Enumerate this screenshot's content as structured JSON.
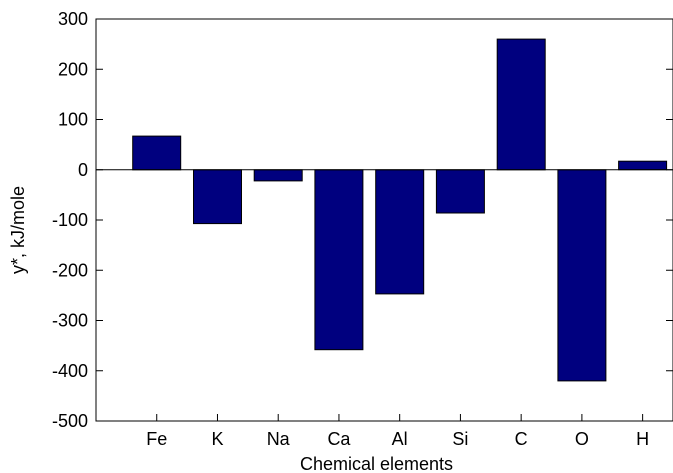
{
  "chart_data": {
    "type": "bar",
    "title": "",
    "xlabel": "Chemical elements",
    "ylabel": "y*, kJ/mole",
    "categories": [
      "Fe",
      "K",
      "Na",
      "Ca",
      "Al",
      "Si",
      "C",
      "O",
      "H"
    ],
    "values": [
      67,
      -107,
      -22,
      -358,
      -247,
      -86,
      260,
      -420,
      17
    ],
    "ylim": [
      -500,
      300
    ],
    "yticks": [
      300,
      200,
      100,
      0,
      -100,
      -200,
      -300,
      -400,
      -500
    ],
    "ytick_labels": [
      "300",
      "200",
      "100",
      "0",
      "-100",
      "-200",
      "-300",
      "-400",
      "-500"
    ],
    "grid": false,
    "legend": "none",
    "bar_color": "#00007f",
    "axis_color": "#000000"
  }
}
